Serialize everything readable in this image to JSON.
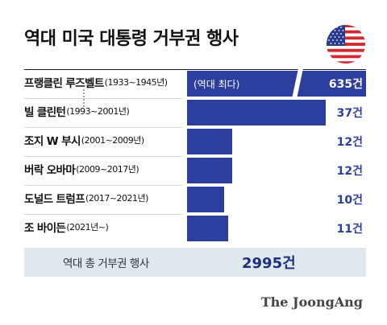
{
  "title": "역대 미국 대통령 거부권 행사",
  "chart_data": {
    "type": "bar",
    "orientation": "horizontal",
    "categories": [
      {
        "name": "프랭클린 루즈벨트",
        "years": "(1933~1945년)"
      },
      {
        "name": "빌 클린턴",
        "years": "(1993~2001년)"
      },
      {
        "name": "조지 W 부시",
        "years": "(2001~2009년)"
      },
      {
        "name": "버락 오바마",
        "years": "(2009~2017년)"
      },
      {
        "name": "도널드 트럼프",
        "years": "(2017~2021년)"
      },
      {
        "name": "조 바이든",
        "years": "(2021년~)"
      }
    ],
    "values": [
      635,
      37,
      12,
      12,
      10,
      11
    ],
    "value_labels": [
      "635건",
      "37건",
      "12건",
      "12건",
      "10건",
      "11건"
    ],
    "max_note": "(역대 최다)",
    "axis_break": true,
    "total_label": "역대 총 거부권 행사",
    "total_value": "2995건",
    "bar_color": "#2c3e9e"
  },
  "source": "The JoongAng",
  "icons": [
    "us-flag-icon"
  ]
}
